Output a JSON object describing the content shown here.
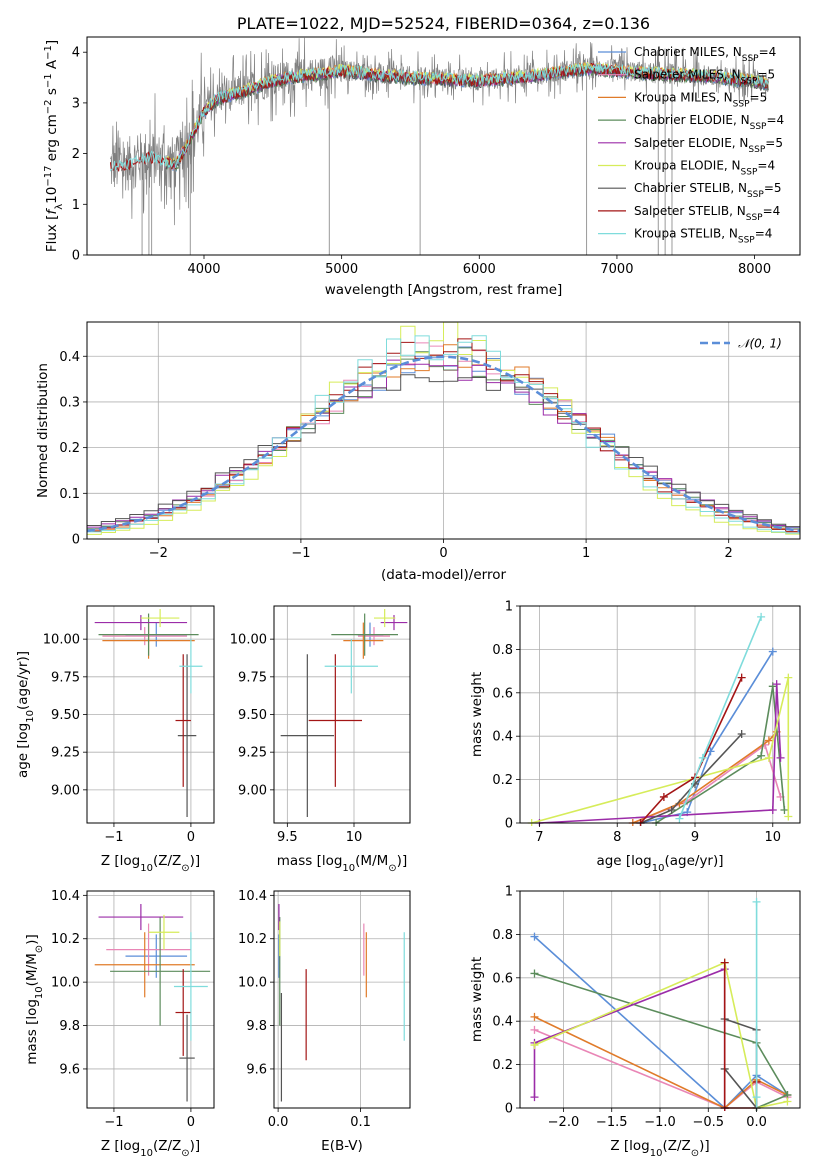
{
  "chart_data": [
    {
      "id": "spectrum",
      "type": "line",
      "title": "PLATE=1022, MJD=52524, FIBERID=0364, z=0.136",
      "xlabel": "wavelength [Angstrom, rest frame]",
      "ylabel_parts": [
        "Flux [",
        "f",
        "λ",
        "10",
        "−17",
        " erg cm",
        "−2",
        " s",
        "−1",
        " A",
        "−1",
        "]"
      ],
      "xlim": [
        3150,
        8330
      ],
      "ylim": [
        0,
        4.3
      ],
      "xticks": [
        4000,
        5000,
        6000,
        7000,
        8000
      ],
      "yticks": [
        0,
        1,
        2,
        3,
        4
      ],
      "grid": false,
      "legend_position": "upper right",
      "legend": [
        {
          "label": "Chabrier MILES, N",
          "sub": "SSP",
          "suffix": "=4",
          "color": "#5b8ed8"
        },
        {
          "label": "Salpeter MILES, N",
          "sub": "SSP",
          "suffix": "=5",
          "color": "#e986b6"
        },
        {
          "label": "Kroupa MILES, N",
          "sub": "SSP",
          "suffix": "=5",
          "color": "#e07b2a"
        },
        {
          "label": "Chabrier ELODIE, N",
          "sub": "SSP",
          "suffix": "=4",
          "color": "#5c8c5c"
        },
        {
          "label": "Salpeter ELODIE, N",
          "sub": "SSP",
          "suffix": "=5",
          "color": "#9b2ca8"
        },
        {
          "label": "Kroupa ELODIE, N",
          "sub": "SSP",
          "suffix": "=4",
          "color": "#d6ec5a"
        },
        {
          "label": "Chabrier STELIB, N",
          "sub": "SSP",
          "suffix": "=5",
          "color": "#555555"
        },
        {
          "label": "Salpeter STELIB, N",
          "sub": "SSP",
          "suffix": "=4",
          "color": "#a31515"
        },
        {
          "label": "Kroupa STELIB, N",
          "sub": "SSP",
          "suffix": "=4",
          "color": "#7fdcdc"
        }
      ],
      "data_color": "#808080",
      "continuum_knots": {
        "x": [
          3320,
          3450,
          3600,
          3700,
          3800,
          3900,
          4000,
          4100,
          4300,
          4500,
          4700,
          4900,
          5000,
          5300,
          5600,
          6000,
          6400,
          6800,
          7200,
          7600,
          8000,
          8100
        ],
        "y": [
          1.75,
          1.8,
          1.95,
          1.85,
          1.8,
          2.3,
          2.85,
          3.1,
          3.25,
          3.45,
          3.55,
          3.6,
          3.65,
          3.55,
          3.5,
          3.45,
          3.55,
          3.7,
          3.6,
          3.55,
          3.45,
          3.4
        ]
      },
      "model_start_x": {
        "Salpeter STELIB": 3320,
        "Kroupa STELIB": 3320
      },
      "telluric_dropouts_x": [
        3550,
        3600,
        3620,
        3900,
        4910,
        5570,
        6780,
        7300,
        7350,
        7400
      ]
    },
    {
      "id": "residuals",
      "type": "histogram",
      "xlabel": "(data-model)/error",
      "ylabel": "Normed distribution",
      "xlim": [
        -2.5,
        2.5
      ],
      "ylim": [
        0,
        0.475
      ],
      "xticks": [
        -2,
        -1,
        0,
        1,
        2
      ],
      "yticks": [
        0.0,
        0.1,
        0.2,
        0.3,
        0.4
      ],
      "grid": true,
      "bin_width": 0.1,
      "reference_curve": {
        "label": "𝒩(0, 1)",
        "mean": 0,
        "sigma": 1,
        "color": "#5b8ed8",
        "style": "dashed"
      },
      "legend_position": "upper right",
      "series_colors": [
        "#5b8ed8",
        "#e986b6",
        "#e07b2a",
        "#5c8c5c",
        "#9b2ca8",
        "#d6ec5a",
        "#555555",
        "#a31515",
        "#7fdcdc"
      ],
      "peak_heights": [
        0.39,
        0.4,
        0.41,
        0.39,
        0.38,
        0.45,
        0.37,
        0.41,
        0.43
      ]
    },
    {
      "id": "age_vs_Z",
      "type": "scatter",
      "xlabel_parts": [
        "Z [log",
        "10",
        "(Z/Z",
        "⊙",
        ")]"
      ],
      "ylabel_parts": [
        "age  [log",
        "10",
        "(age/yr)]"
      ],
      "xlim": [
        -1.35,
        0.3
      ],
      "ylim": [
        8.78,
        10.22
      ],
      "xticks": [
        -1,
        0
      ],
      "yticks": [
        9.0,
        9.25,
        9.5,
        9.75,
        10.0
      ],
      "ytick_labels": [
        "9.00",
        "9.25",
        "9.50",
        "9.75",
        "10.00"
      ],
      "grid": true,
      "points": [
        {
          "series": "Chabrier MILES",
          "x": -0.45,
          "y": 10.03,
          "xerr": 0.4,
          "yerr": 0.08
        },
        {
          "series": "Salpeter MILES",
          "x": -0.6,
          "y": 10.02,
          "xerr": 0.55,
          "yerr": 0.06
        },
        {
          "series": "Kroupa MILES",
          "x": -0.55,
          "y": 9.99,
          "xerr": 0.6,
          "yerr": 0.12
        },
        {
          "series": "Chabrier ELODIE",
          "x": -0.55,
          "y": 10.03,
          "xerr": 0.65,
          "yerr": 0.14
        },
        {
          "series": "Salpeter ELODIE",
          "x": -0.65,
          "y": 10.11,
          "xerr": 0.6,
          "yerr": 0.05
        },
        {
          "series": "Kroupa ELODIE",
          "x": -0.4,
          "y": 10.14,
          "xerr": 0.25,
          "yerr": 0.06
        },
        {
          "series": "Chabrier STELIB",
          "x": -0.05,
          "y": 9.36,
          "xerr": 0.12,
          "yerr": 0.54
        },
        {
          "series": "Salpeter STELIB",
          "x": -0.1,
          "y": 9.46,
          "xerr": 0.1,
          "yerr": 0.44
        },
        {
          "series": "Kroupa STELIB",
          "x": 0.0,
          "y": 9.82,
          "xerr": 0.15,
          "yerr": 0.18
        }
      ]
    },
    {
      "id": "age_vs_mass",
      "type": "scatter",
      "xlabel_parts": [
        "mass [log",
        "10",
        "(M/M",
        "⊙",
        ")]"
      ],
      "ylabel": "",
      "xlim": [
        9.4,
        10.42
      ],
      "ylim": [
        8.78,
        10.22
      ],
      "xticks": [
        9.5,
        10.0
      ],
      "yticks": [
        9.0,
        9.25,
        9.5,
        9.75,
        10.0
      ],
      "ytick_labels": [
        "9.00",
        "9.25",
        "9.50",
        "9.75",
        "10.00"
      ],
      "grid": true,
      "points": [
        {
          "series": "Chabrier MILES",
          "x": 10.12,
          "y": 10.03,
          "xerr": 0.1,
          "yerr": 0.08
        },
        {
          "series": "Salpeter MILES",
          "x": 10.15,
          "y": 10.02,
          "xerr": 0.12,
          "yerr": 0.06
        },
        {
          "series": "Kroupa MILES",
          "x": 10.07,
          "y": 9.99,
          "xerr": 0.15,
          "yerr": 0.12
        },
        {
          "series": "Chabrier ELODIE",
          "x": 10.08,
          "y": 10.03,
          "xerr": 0.25,
          "yerr": 0.14
        },
        {
          "series": "Salpeter ELODIE",
          "x": 10.3,
          "y": 10.11,
          "xerr": 0.1,
          "yerr": 0.05
        },
        {
          "series": "Kroupa ELODIE",
          "x": 10.23,
          "y": 10.14,
          "xerr": 0.08,
          "yerr": 0.06
        },
        {
          "series": "Chabrier STELIB",
          "x": 9.65,
          "y": 9.36,
          "xerr": 0.2,
          "yerr": 0.54
        },
        {
          "series": "Salpeter STELIB",
          "x": 9.86,
          "y": 9.46,
          "xerr": 0.2,
          "yerr": 0.44
        },
        {
          "series": "Kroupa STELIB",
          "x": 9.98,
          "y": 9.82,
          "xerr": 0.2,
          "yerr": 0.18
        }
      ]
    },
    {
      "id": "massweight_vs_age",
      "type": "line",
      "xlabel_parts": [
        "age  [log",
        "10",
        "(age/yr)]"
      ],
      "ylabel": "mass weight",
      "xlim": [
        6.75,
        10.35
      ],
      "ylim": [
        0,
        1.0
      ],
      "xticks": [
        7,
        8,
        9,
        10
      ],
      "yticks": [
        0.0,
        0.2,
        0.4,
        0.6,
        0.8,
        1.0
      ],
      "grid": true,
      "series": [
        {
          "name": "Chabrier MILES",
          "x": [
            8.3,
            8.9,
            9.2,
            10.0
          ],
          "y": [
            0.0,
            0.05,
            0.33,
            0.79
          ]
        },
        {
          "name": "Salpeter MILES",
          "x": [
            8.2,
            8.9,
            9.9,
            10.1
          ],
          "y": [
            0.0,
            0.1,
            0.36,
            0.12
          ]
        },
        {
          "name": "Kroupa MILES",
          "x": [
            8.2,
            8.8,
            9.95,
            10.05
          ],
          "y": [
            0.0,
            0.09,
            0.38,
            0.42
          ]
        },
        {
          "name": "Chabrier ELODIE",
          "x": [
            8.5,
            9.85,
            10.0,
            10.15
          ],
          "y": [
            0.0,
            0.31,
            0.63,
            0.06
          ]
        },
        {
          "name": "Salpeter ELODIE",
          "x": [
            7.0,
            10.0,
            10.05,
            10.1
          ],
          "y": [
            0.0,
            0.06,
            0.64,
            0.3
          ]
        },
        {
          "name": "Kroupa ELODIE",
          "x": [
            6.9,
            9.95,
            10.2,
            10.2
          ],
          "y": [
            0.0,
            0.3,
            0.67,
            0.03
          ]
        },
        {
          "name": "Chabrier STELIB",
          "x": [
            8.3,
            8.7,
            9.0,
            9.6
          ],
          "y": [
            0.0,
            0.06,
            0.18,
            0.41
          ]
        },
        {
          "name": "Salpeter STELIB",
          "x": [
            8.3,
            8.6,
            9.0,
            9.6
          ],
          "y": [
            0.0,
            0.12,
            0.21,
            0.67
          ]
        },
        {
          "name": "Kroupa STELIB",
          "x": [
            8.8,
            9.1,
            9.85
          ],
          "y": [
            0.02,
            0.3,
            0.95
          ]
        }
      ]
    },
    {
      "id": "mass_vs_Z",
      "type": "scatter",
      "xlabel_parts": [
        "Z [log",
        "10",
        "(Z/Z",
        "⊙",
        ")]"
      ],
      "ylabel_parts": [
        "mass [log",
        "10",
        "(M/M",
        "⊙",
        ")]"
      ],
      "xlim": [
        -1.35,
        0.3
      ],
      "ylim": [
        9.42,
        10.42
      ],
      "xticks": [
        -1,
        0
      ],
      "yticks": [
        9.6,
        9.8,
        10.0,
        10.2,
        10.4
      ],
      "ytick_labels": [
        "9.6",
        "9.8",
        "10.0",
        "10.2",
        "10.4"
      ],
      "grid": true,
      "points": [
        {
          "series": "Chabrier MILES",
          "x": -0.45,
          "y": 10.12,
          "xerr": 0.4,
          "yerr": 0.1
        },
        {
          "series": "Salpeter MILES",
          "x": -0.55,
          "y": 10.15,
          "xerr": 0.55,
          "yerr": 0.12
        },
        {
          "series": "Kroupa MILES",
          "x": -0.6,
          "y": 10.08,
          "xerr": 0.65,
          "yerr": 0.15
        },
        {
          "series": "Chabrier ELODIE",
          "x": -0.4,
          "y": 10.05,
          "xerr": 0.65,
          "yerr": 0.25
        },
        {
          "series": "Salpeter ELODIE",
          "x": -0.65,
          "y": 10.3,
          "xerr": 0.55,
          "yerr": 0.06
        },
        {
          "series": "Kroupa ELODIE",
          "x": -0.35,
          "y": 10.23,
          "xerr": 0.2,
          "yerr": 0.08
        },
        {
          "series": "Chabrier STELIB",
          "x": -0.05,
          "y": 9.65,
          "xerr": 0.1,
          "yerr": 0.2
        },
        {
          "series": "Salpeter STELIB",
          "x": -0.1,
          "y": 9.86,
          "xerr": 0.1,
          "yerr": 0.2
        },
        {
          "series": "Kroupa STELIB",
          "x": 0.0,
          "y": 9.98,
          "xerr": 0.22,
          "yerr": 0.25
        }
      ]
    },
    {
      "id": "mass_vs_EBV",
      "type": "scatter",
      "xlabel": "E(B-V)",
      "ylabel": "",
      "xlim": [
        -0.005,
        0.16
      ],
      "ylim": [
        9.42,
        10.42
      ],
      "xticks": [
        0.0,
        0.1
      ],
      "xtick_labels": [
        "0.0",
        "0.1"
      ],
      "yticks": [
        9.6,
        9.8,
        10.0,
        10.2,
        10.4
      ],
      "ytick_labels": [
        "9.6",
        "9.8",
        "10.0",
        "10.2",
        "10.4"
      ],
      "grid": true,
      "points": [
        {
          "series": "Chabrier MILES",
          "x": 0.001,
          "y": 10.12,
          "xerr": 0.0,
          "yerr": 0.1
        },
        {
          "series": "Salpeter MILES",
          "x": 0.104,
          "y": 10.15,
          "xerr": 0.0,
          "yerr": 0.12
        },
        {
          "series": "Kroupa MILES",
          "x": 0.107,
          "y": 10.08,
          "xerr": 0.0,
          "yerr": 0.15
        },
        {
          "series": "Chabrier ELODIE",
          "x": 0.002,
          "y": 10.05,
          "xerr": 0.0,
          "yerr": 0.25
        },
        {
          "series": "Salpeter ELODIE",
          "x": 0.001,
          "y": 10.3,
          "xerr": 0.0,
          "yerr": 0.06
        },
        {
          "series": "Kroupa ELODIE",
          "x": 0.002,
          "y": 10.2,
          "xerr": 0.0,
          "yerr": 0.08
        },
        {
          "series": "Chabrier STELIB",
          "x": 0.004,
          "y": 9.7,
          "xerr": 0.0,
          "yerr": 0.25
        },
        {
          "series": "Salpeter STELIB",
          "x": 0.034,
          "y": 9.85,
          "xerr": 0.0,
          "yerr": 0.21
        },
        {
          "series": "Kroupa STELIB",
          "x": 0.153,
          "y": 9.98,
          "xerr": 0.0,
          "yerr": 0.25
        }
      ]
    },
    {
      "id": "massweight_vs_Z",
      "type": "line",
      "xlabel_parts": [
        "Z [log",
        "10",
        "(Z/Z",
        "⊙",
        ")]"
      ],
      "ylabel": "mass weight",
      "xlim": [
        -2.45,
        0.45
      ],
      "ylim": [
        0,
        1.0
      ],
      "xticks": [
        -2.0,
        -1.5,
        -1.0,
        -0.5,
        0.0
      ],
      "xtick_labels": [
        "−2.0",
        "−1.5",
        "−1.0",
        "−0.5",
        "0.0"
      ],
      "yticks": [
        0.0,
        0.2,
        0.4,
        0.6,
        0.8,
        1.0
      ],
      "grid": true,
      "series": [
        {
          "name": "Chabrier MILES",
          "x": [
            -2.3,
            -0.33,
            0.0,
            0.32
          ],
          "y": [
            0.79,
            0.0,
            0.15,
            0.06
          ]
        },
        {
          "name": "Salpeter MILES",
          "x": [
            -2.3,
            -0.33,
            0.0,
            0.32
          ],
          "y": [
            0.36,
            0.0,
            0.12,
            0.05
          ]
        },
        {
          "name": "Kroupa MILES",
          "x": [
            -2.3,
            -0.33,
            0.0,
            0.32
          ],
          "y": [
            0.42,
            0.0,
            0.13,
            0.06
          ]
        },
        {
          "name": "Chabrier ELODIE",
          "x": [
            -2.3,
            0.0,
            0.32,
            0.0
          ],
          "y": [
            0.62,
            0.3,
            0.06,
            0.0
          ]
        },
        {
          "name": "Salpeter ELODIE",
          "x": [
            -2.3,
            -2.3,
            -0.33,
            -0.33
          ],
          "y": [
            0.05,
            0.3,
            0.64,
            0.0
          ]
        },
        {
          "name": "Kroupa ELODIE",
          "x": [
            -2.3,
            -0.33,
            0.0,
            0.32
          ],
          "y": [
            0.29,
            0.67,
            0.0,
            0.03
          ]
        },
        {
          "name": "Chabrier STELIB",
          "x": [
            -0.33,
            0.0,
            0.0,
            -0.33
          ],
          "y": [
            0.41,
            0.36,
            0.0,
            0.18
          ]
        },
        {
          "name": "Salpeter STELIB",
          "x": [
            -0.33,
            -0.33,
            0.0,
            0.0
          ],
          "y": [
            0.67,
            0.0,
            0.0,
            0.12
          ]
        },
        {
          "name": "Kroupa STELIB",
          "x": [
            0.0,
            0.0,
            0.0
          ],
          "y": [
            0.95,
            0.0,
            0.05
          ]
        }
      ]
    }
  ]
}
